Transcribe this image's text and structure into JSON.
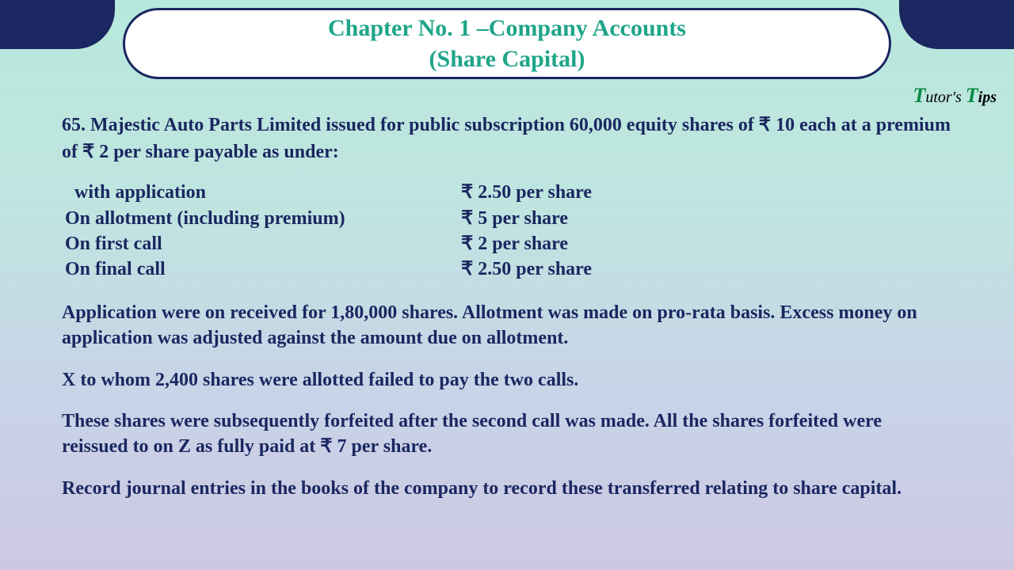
{
  "colors": {
    "header_bg": "#1a2760",
    "title_color": "#1fa588",
    "text_color": "#1a2760",
    "banner_bg": "#ffffff",
    "logo_green": "#0a8a45"
  },
  "title": {
    "line1": "Chapter No. 1 –Company Accounts",
    "line2": "(Share Capital)"
  },
  "logo": {
    "part1": "T",
    "part2": "utor's",
    "part3": "T",
    "part4": "ips"
  },
  "question": {
    "intro": "65. Majestic Auto Parts Limited issued for public subscription 60,000 equity shares of ₹ 10 each at a premium of ₹ 2 per share payable as under:",
    "payments": [
      {
        "label": "with application",
        "value": "₹ 2.50 per share",
        "indent": true
      },
      {
        "label": "On allotment (including premium)",
        "value": "₹ 5 per share",
        "indent": false
      },
      {
        "label": "On first call",
        "value": "₹ 2 per share",
        "indent": false
      },
      {
        "label": "On final call",
        "value": "₹ 2.50 per share",
        "indent": false
      }
    ],
    "para1": "Application were on received for 1,80,000 shares. Allotment was made on pro-rata basis. Excess money on application was adjusted against the amount due on allotment.",
    "para2": "X to whom 2,400 shares were allotted failed to pay the two calls.",
    "para3": "These shares were subsequently forfeited after the second call was made. All the shares forfeited were reissued to on Z as fully paid at ₹ 7 per share.",
    "para4": "Record journal entries in the books of the company to record these transferred relating to share capital."
  },
  "typography": {
    "title_fontsize": 30,
    "body_fontsize": 24,
    "font_family": "Georgia, serif",
    "font_weight": "bold"
  }
}
